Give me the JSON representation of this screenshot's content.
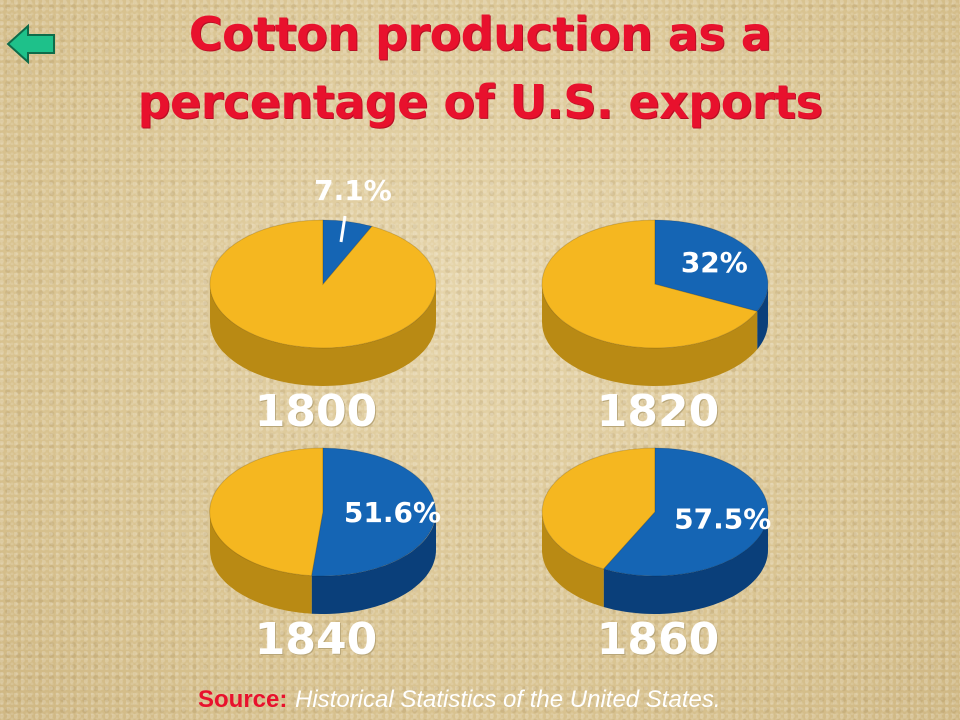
{
  "header": {
    "title_line1": "Cotton production as a",
    "title_line2": "percentage of U.S. exports"
  },
  "nav": {
    "back_icon": "back-arrow-icon"
  },
  "colors": {
    "cotton": "#1565b4",
    "cotton_side": "#0a3f7a",
    "other": "#f5b720",
    "other_side": "#b98a14",
    "title": "#e8112d"
  },
  "chart_data": {
    "type": "pie",
    "title": "Cotton production as a percentage of U.S. exports",
    "charts": [
      {
        "year": "1800",
        "cotton_percent": 7.1,
        "label": "7.1%"
      },
      {
        "year": "1820",
        "cotton_percent": 32,
        "label": "32%"
      },
      {
        "year": "1840",
        "cotton_percent": 51.6,
        "label": "51.6%"
      },
      {
        "year": "1860",
        "cotton_percent": 57.5,
        "label": "57.5%"
      }
    ]
  },
  "footer": {
    "source_label": "Source:",
    "source_text": "Historical Statistics of the United States."
  }
}
